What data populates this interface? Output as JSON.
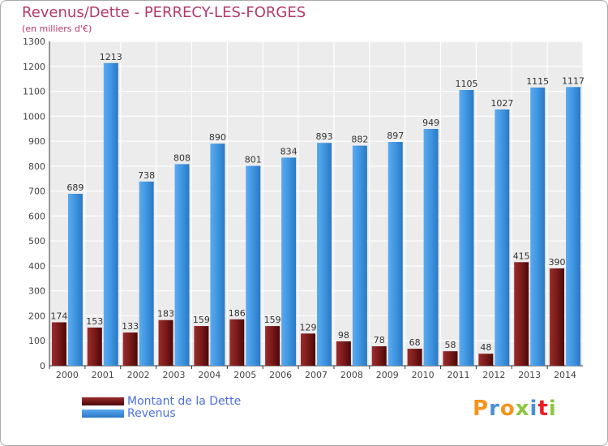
{
  "title": "Revenus/Dette - PERRECY-LES-FORGES",
  "subtitle": "(en milliers d'€)",
  "logo": {
    "text": "Proxiti",
    "colors": [
      "#f7941d",
      "#4a90d9",
      "#f7941d",
      "#8dc63f",
      "#4a90d9",
      "#ed1c24",
      "#8dc63f"
    ]
  },
  "colors": {
    "dette": "#7a1a1a",
    "revenus": "#3f95e0"
  },
  "chart_data": {
    "type": "bar",
    "title": "Revenus/Dette - PERRECY-LES-FORGES",
    "ylabel": "(en milliers d'€)",
    "categories": [
      "2000",
      "2001",
      "2002",
      "2003",
      "2004",
      "2005",
      "2006",
      "2007",
      "2008",
      "2009",
      "2010",
      "2011",
      "2012",
      "2013",
      "2014"
    ],
    "ylim": [
      0,
      1300
    ],
    "yticks": [
      0,
      100,
      200,
      300,
      400,
      500,
      600,
      700,
      800,
      900,
      1000,
      1100,
      1200,
      1300
    ],
    "grid": true,
    "legend_position": "bottom-left",
    "series": [
      {
        "name": "Montant de la Dette",
        "color": "#7a1a1a",
        "values": [
          174,
          153,
          133,
          183,
          159,
          186,
          159,
          129,
          98,
          78,
          68,
          58,
          48,
          415,
          390
        ]
      },
      {
        "name": "Revenus",
        "color": "#3f95e0",
        "values": [
          689,
          1213,
          738,
          808,
          890,
          801,
          834,
          893,
          882,
          897,
          949,
          1105,
          1027,
          1115,
          1117
        ]
      }
    ]
  }
}
